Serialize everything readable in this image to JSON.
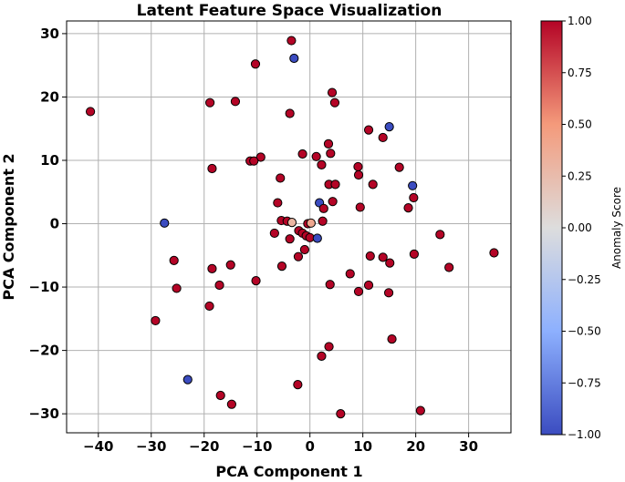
{
  "chart_data": {
    "type": "scatter",
    "title": "Latent Feature Space Visualization",
    "xlabel": "PCA Component 1",
    "ylabel": "PCA Component 2",
    "xlim": [
      -46,
      38
    ],
    "ylim": [
      -33,
      32
    ],
    "xticks": [
      -40,
      -30,
      -20,
      -10,
      0,
      10,
      20,
      30
    ],
    "yticks": [
      -30,
      -20,
      -10,
      0,
      10,
      20,
      30
    ],
    "grid": true,
    "colormap": "coolwarm",
    "colorbar": {
      "label": "Anomaly Score",
      "range": [
        -1.0,
        1.0
      ],
      "ticks": [
        "1.00",
        "0.75",
        "0.50",
        "0.25",
        "0.00",
        "−0.25",
        "−0.50",
        "−0.75",
        "−1.00"
      ],
      "tick_values": [
        1.0,
        0.75,
        0.5,
        0.25,
        0.0,
        -0.25,
        -0.5,
        -0.75,
        -1.0
      ],
      "colors": {
        "high": "#b40426",
        "mid": "#dddddd",
        "low": "#3b4cc0"
      }
    },
    "points": [
      {
        "x": -41.5,
        "y": 17.7,
        "c": 1
      },
      {
        "x": -3.5,
        "y": 28.9,
        "c": 1
      },
      {
        "x": -3.0,
        "y": 26.1,
        "c": -1
      },
      {
        "x": -10.3,
        "y": 25.2,
        "c": 1
      },
      {
        "x": -18.9,
        "y": 19.1,
        "c": 1
      },
      {
        "x": -14.1,
        "y": 19.3,
        "c": 1
      },
      {
        "x": 4.2,
        "y": 20.7,
        "c": 1
      },
      {
        "x": 4.7,
        "y": 19.1,
        "c": 1
      },
      {
        "x": -3.8,
        "y": 17.4,
        "c": 1
      },
      {
        "x": 11.1,
        "y": 14.8,
        "c": 1
      },
      {
        "x": 15.0,
        "y": 15.3,
        "c": -1
      },
      {
        "x": 13.8,
        "y": 13.6,
        "c": 1
      },
      {
        "x": 3.5,
        "y": 12.6,
        "c": 1
      },
      {
        "x": 3.9,
        "y": 11.1,
        "c": 1
      },
      {
        "x": -1.4,
        "y": 11.0,
        "c": 1
      },
      {
        "x": 1.2,
        "y": 10.6,
        "c": 1
      },
      {
        "x": -9.3,
        "y": 10.5,
        "c": 1
      },
      {
        "x": -11.3,
        "y": 9.9,
        "c": 1
      },
      {
        "x": -10.6,
        "y": 9.9,
        "c": 1
      },
      {
        "x": 2.2,
        "y": 9.3,
        "c": 1
      },
      {
        "x": -18.5,
        "y": 8.7,
        "c": 1
      },
      {
        "x": 9.1,
        "y": 9.0,
        "c": 1
      },
      {
        "x": 16.9,
        "y": 8.9,
        "c": 1
      },
      {
        "x": 9.2,
        "y": 7.7,
        "c": 1
      },
      {
        "x": -5.6,
        "y": 7.2,
        "c": 1
      },
      {
        "x": 3.6,
        "y": 6.2,
        "c": 1
      },
      {
        "x": 4.8,
        "y": 6.2,
        "c": 1
      },
      {
        "x": 11.9,
        "y": 6.2,
        "c": 1
      },
      {
        "x": 19.4,
        "y": 6.0,
        "c": -1
      },
      {
        "x": 19.6,
        "y": 4.1,
        "c": 1
      },
      {
        "x": -6.1,
        "y": 3.3,
        "c": 1
      },
      {
        "x": 1.8,
        "y": 3.3,
        "c": -1
      },
      {
        "x": 4.3,
        "y": 3.5,
        "c": 1
      },
      {
        "x": 9.5,
        "y": 2.6,
        "c": 1
      },
      {
        "x": 18.6,
        "y": 2.5,
        "c": 1
      },
      {
        "x": 2.6,
        "y": 2.4,
        "c": 1
      },
      {
        "x": -27.5,
        "y": 0.1,
        "c": -1
      },
      {
        "x": -5.4,
        "y": 0.5,
        "c": 1
      },
      {
        "x": -4.3,
        "y": 0.4,
        "c": 1
      },
      {
        "x": -3.4,
        "y": 0.2,
        "c": 0.3
      },
      {
        "x": -0.4,
        "y": 0.0,
        "c": 1
      },
      {
        "x": 0.2,
        "y": 0.1,
        "c": 0.4
      },
      {
        "x": 2.4,
        "y": 0.4,
        "c": 1
      },
      {
        "x": -6.7,
        "y": -1.5,
        "c": 1
      },
      {
        "x": -2.1,
        "y": -1.1,
        "c": 1
      },
      {
        "x": -1.4,
        "y": -1.5,
        "c": 1
      },
      {
        "x": -0.7,
        "y": -1.9,
        "c": 1
      },
      {
        "x": 0.0,
        "y": -2.2,
        "c": 1
      },
      {
        "x": -3.8,
        "y": -2.4,
        "c": 1
      },
      {
        "x": 1.4,
        "y": -2.3,
        "c": -1
      },
      {
        "x": 24.6,
        "y": -1.7,
        "c": 1
      },
      {
        "x": -1.0,
        "y": -4.1,
        "c": 1
      },
      {
        "x": 19.7,
        "y": -4.8,
        "c": 1
      },
      {
        "x": 34.8,
        "y": -4.6,
        "c": 1
      },
      {
        "x": -25.7,
        "y": -5.8,
        "c": 1
      },
      {
        "x": -2.2,
        "y": -5.2,
        "c": 1
      },
      {
        "x": 11.4,
        "y": -5.1,
        "c": 1
      },
      {
        "x": 13.8,
        "y": -5.3,
        "c": 1
      },
      {
        "x": 15.1,
        "y": -6.2,
        "c": 1
      },
      {
        "x": -15.0,
        "y": -6.5,
        "c": 1
      },
      {
        "x": -5.3,
        "y": -6.7,
        "c": 1
      },
      {
        "x": 26.3,
        "y": -6.9,
        "c": 1
      },
      {
        "x": -18.5,
        "y": -7.1,
        "c": 1
      },
      {
        "x": 7.6,
        "y": -7.9,
        "c": 1
      },
      {
        "x": -10.2,
        "y": -9.0,
        "c": 1
      },
      {
        "x": -17.1,
        "y": -9.7,
        "c": 1
      },
      {
        "x": -25.2,
        "y": -10.2,
        "c": 1
      },
      {
        "x": 3.8,
        "y": -9.6,
        "c": 1
      },
      {
        "x": 11.1,
        "y": -9.7,
        "c": 1
      },
      {
        "x": 9.2,
        "y": -10.7,
        "c": 1
      },
      {
        "x": 14.9,
        "y": -10.9,
        "c": 1
      },
      {
        "x": -19.0,
        "y": -13.0,
        "c": 1
      },
      {
        "x": -29.2,
        "y": -15.3,
        "c": 1
      },
      {
        "x": 15.5,
        "y": -18.2,
        "c": 1
      },
      {
        "x": 3.6,
        "y": -19.4,
        "c": 1
      },
      {
        "x": 2.2,
        "y": -20.9,
        "c": 1
      },
      {
        "x": -23.1,
        "y": -24.6,
        "c": -1
      },
      {
        "x": -2.3,
        "y": -25.4,
        "c": 1
      },
      {
        "x": -16.9,
        "y": -27.1,
        "c": 1
      },
      {
        "x": -14.8,
        "y": -28.5,
        "c": 1
      },
      {
        "x": 20.9,
        "y": -29.5,
        "c": 1
      },
      {
        "x": 5.8,
        "y": -30.0,
        "c": 1
      }
    ]
  }
}
